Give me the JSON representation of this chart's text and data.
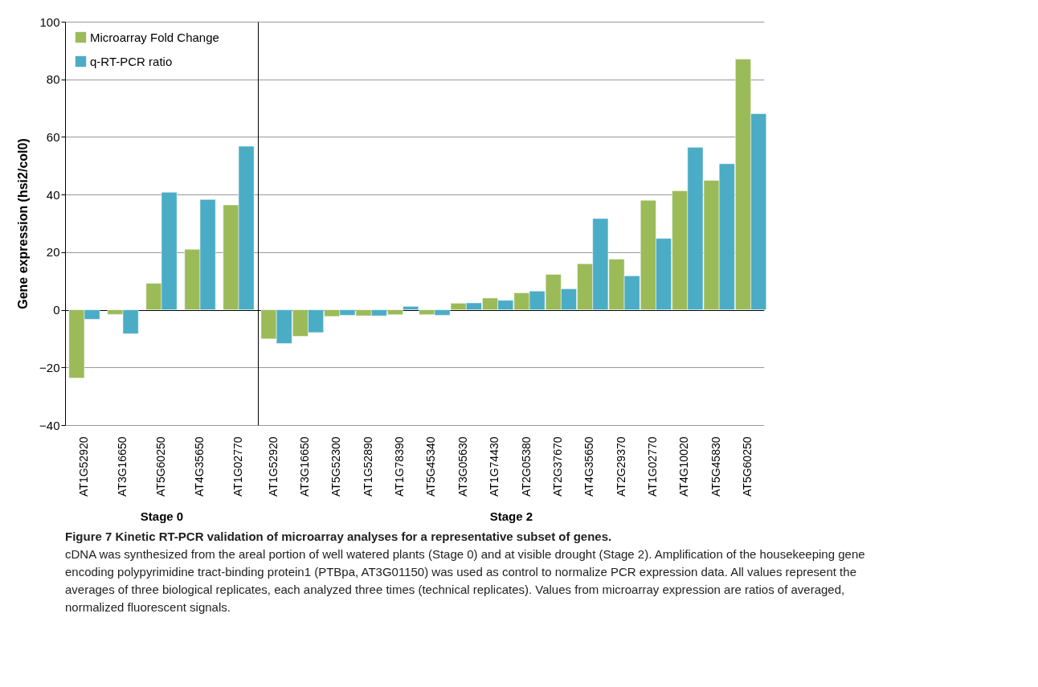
{
  "chart_data": [
    {
      "type": "bar",
      "ylabel": "Gene expression (hsi2/col0)",
      "xlabel": "Stage 0",
      "categories": [
        "AT1G52920",
        "AT3G16650",
        "AT5G60250",
        "AT4G35650",
        "AT1G02770"
      ],
      "series": [
        {
          "name": "Microarray Fold Change",
          "color": "#9bbb59",
          "values": [
            -23.7,
            -1.6,
            9.2,
            21.0,
            36.4
          ]
        },
        {
          "name": "q-RT-PCR ratio",
          "color": "#4bacc6",
          "values": [
            -3.3,
            -8.3,
            40.8,
            38.3,
            56.8
          ]
        }
      ],
      "ylim": [
        -40,
        100
      ],
      "yticks": [
        -40,
        -20,
        0,
        20,
        40,
        60,
        80,
        100
      ],
      "grid": "y",
      "legend": "top left",
      "annotations": [
        "Figure 7 Kinetic RT-PCR validation of microarray analyses for a representative subset of genes.",
        "cDNA was synthesized from the areal portion of well watered plants (Stage 0) and at visible drought (Stage 2). Amplification of the housekeeping gene encoding polypyrimidine tract-binding protein1 (PTBpa, AT3G01150) was used as control to normalize PCR expression data. All values represent the averages of three biological replicates, each analyzed three times (technical replicates). Values from microarray expression are ratios of averaged, normalized fluorescent signals."
      ]
    },
    {
      "type": "bar",
      "xlabel": "Stage 2",
      "categories": [
        "AT1G52920",
        "AT3G16650",
        "AT5G52300",
        "AT1G52890",
        "AT1G78390",
        "AT5G45340",
        "AT3G05630",
        "AT1G74430",
        "AT2G05380",
        "AT2G37670",
        "AT4G35650",
        "AT2G29370",
        "AT1G02770",
        "AT4G10020",
        "AT5G45830",
        "AT5G60250"
      ],
      "series": [
        {
          "color": "#9bbb59",
          "values": [
            -10.1,
            -9.2,
            -2.3,
            -2.1,
            -1.7,
            -1.7,
            2.3,
            4.1,
            5.9,
            12.3,
            16.0,
            17.6,
            38.0,
            41.3,
            44.9,
            87.0
          ]
        },
        {
          "color": "#4bacc6",
          "values": [
            -11.7,
            -7.9,
            -1.9,
            -2.1,
            1.2,
            -1.9,
            2.4,
            3.3,
            6.5,
            7.3,
            31.7,
            11.8,
            24.8,
            56.4,
            50.7,
            68.1
          ]
        }
      ],
      "ylim": [
        -40,
        100
      ],
      "yticks": [
        -40,
        -20,
        0,
        20,
        40,
        60,
        80,
        100
      ],
      "grid": "y",
      "tick_labels": "x"
    }
  ]
}
